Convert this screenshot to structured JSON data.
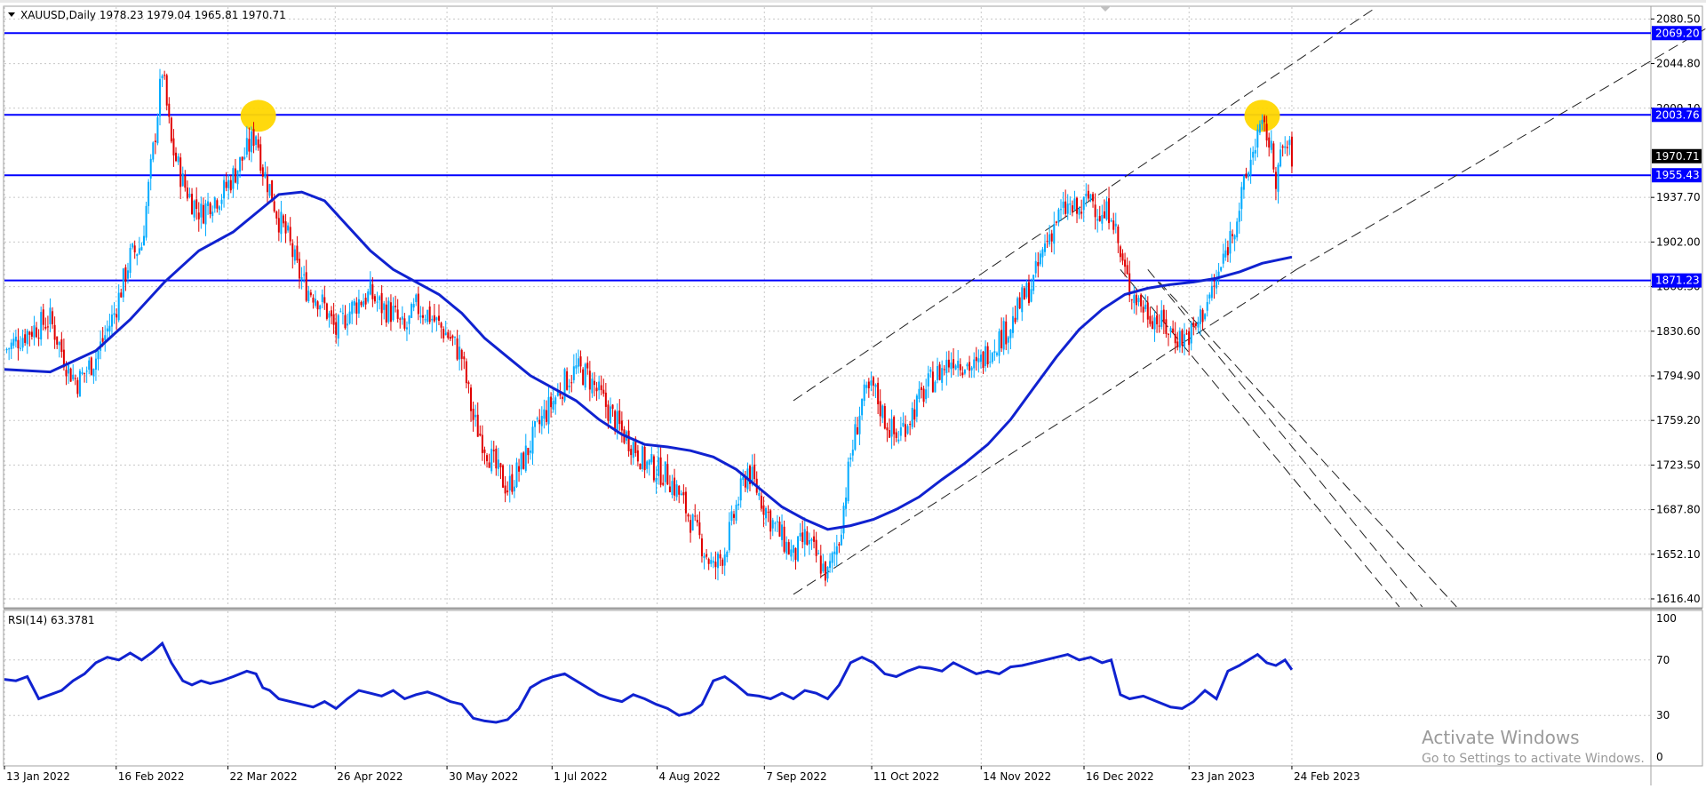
{
  "header": {
    "symbol_line": "XAUUSD,Daily  1978.23 1979.04 1965.81 1970.71",
    "rsi_label": "RSI(14) 63.3781"
  },
  "watermark": {
    "line1": "Activate Windows",
    "line2": "Go to Settings to activate Windows."
  },
  "colors": {
    "bull": "#00aaff",
    "bear": "#e00000",
    "ma": "#1022d0",
    "level": "#0000ff",
    "grid": "#c8c8c8",
    "marker": "#ffd700",
    "rsi": "#1022d0"
  },
  "chart_data": [
    {
      "type": "candlestick",
      "title": "XAUUSD,Daily",
      "ohlc_header": {
        "open": 1978.23,
        "high": 1979.04,
        "low": 1965.81,
        "close": 1970.71
      },
      "price_axis_ticks": [
        "2080.50",
        "2044.80",
        "2009.10",
        "1937.70",
        "1902.00",
        "1866.30",
        "1830.60",
        "1794.90",
        "1759.20",
        "1723.50",
        "1687.80",
        "1652.10",
        "1616.40"
      ],
      "date_axis_ticks": [
        "13 Jan 2022",
        "16 Feb 2022",
        "22 Mar 2022",
        "26 Apr 2022",
        "30 May 2022",
        "1 Jul 2022",
        "4 Aug 2022",
        "7 Sep 2022",
        "11 Oct 2022",
        "14 Nov 2022",
        "16 Dec 2022",
        "23 Jan 2023",
        "24 Feb 2023"
      ],
      "ylim": [
        1610,
        2090
      ],
      "horizontal_levels": [
        {
          "label": "2069.20",
          "value": 2069.2
        },
        {
          "label": "2003.76",
          "value": 2003.76
        },
        {
          "label": "1955.43",
          "value": 1955.43
        },
        {
          "label": "1871.23",
          "value": 1871.23
        }
      ],
      "current_price": {
        "label": "1970.71",
        "value": 1970.71
      },
      "close_path": [
        [
          0,
          1815
        ],
        [
          10,
          1830
        ],
        [
          20,
          1840
        ],
        [
          28,
          1800
        ],
        [
          32,
          1790
        ],
        [
          40,
          1810
        ],
        [
          48,
          1845
        ],
        [
          55,
          1890
        ],
        [
          60,
          1900
        ],
        [
          66,
          1990
        ],
        [
          69,
          2040
        ],
        [
          73,
          1980
        ],
        [
          78,
          1950
        ],
        [
          82,
          1935
        ],
        [
          86,
          1925
        ],
        [
          90,
          1935
        ],
        [
          95,
          1940
        ],
        [
          100,
          1955
        ],
        [
          106,
          1975
        ],
        [
          110,
          1990
        ],
        [
          113,
          1960
        ],
        [
          116,
          1945
        ],
        [
          120,
          1920
        ],
        [
          124,
          1905
        ],
        [
          128,
          1880
        ],
        [
          132,
          1865
        ],
        [
          136,
          1860
        ],
        [
          140,
          1850
        ],
        [
          145,
          1830
        ],
        [
          150,
          1845
        ],
        [
          155,
          1855
        ],
        [
          160,
          1860
        ],
        [
          165,
          1850
        ],
        [
          170,
          1845
        ],
        [
          175,
          1830
        ],
        [
          180,
          1850
        ],
        [
          185,
          1845
        ],
        [
          190,
          1835
        ],
        [
          195,
          1825
        ],
        [
          200,
          1810
        ],
        [
          205,
          1760
        ],
        [
          210,
          1740
        ],
        [
          215,
          1720
        ],
        [
          220,
          1705
        ],
        [
          225,
          1720
        ],
        [
          230,
          1740
        ],
        [
          235,
          1760
        ],
        [
          240,
          1775
        ],
        [
          245,
          1790
        ],
        [
          250,
          1800
        ],
        [
          255,
          1795
        ],
        [
          260,
          1780
        ],
        [
          265,
          1765
        ],
        [
          270,
          1750
        ],
        [
          275,
          1740
        ],
        [
          280,
          1725
        ],
        [
          285,
          1720
        ],
        [
          290,
          1715
        ],
        [
          295,
          1700
        ],
        [
          300,
          1680
        ],
        [
          305,
          1660
        ],
        [
          310,
          1640
        ],
        [
          315,
          1655
        ],
        [
          320,
          1690
        ],
        [
          325,
          1720
        ],
        [
          330,
          1700
        ],
        [
          335,
          1680
        ],
        [
          340,
          1665
        ],
        [
          345,
          1650
        ],
        [
          350,
          1665
        ],
        [
          355,
          1650
        ],
        [
          360,
          1635
        ],
        [
          365,
          1665
        ],
        [
          370,
          1730
        ],
        [
          375,
          1775
        ],
        [
          380,
          1785
        ],
        [
          385,
          1760
        ],
        [
          390,
          1745
        ],
        [
          395,
          1760
        ],
        [
          400,
          1775
        ],
        [
          405,
          1790
        ],
        [
          410,
          1800
        ],
        [
          415,
          1810
        ],
        [
          420,
          1805
        ],
        [
          425,
          1800
        ],
        [
          430,
          1815
        ],
        [
          435,
          1825
        ],
        [
          440,
          1835
        ],
        [
          445,
          1855
        ],
        [
          450,
          1870
        ],
        [
          455,
          1900
        ],
        [
          460,
          1920
        ],
        [
          465,
          1930
        ],
        [
          470,
          1925
        ],
        [
          475,
          1940
        ],
        [
          480,
          1920
        ],
        [
          484,
          1930
        ],
        [
          488,
          1890
        ],
        [
          492,
          1865
        ],
        [
          498,
          1850
        ],
        [
          504,
          1840
        ],
        [
          510,
          1830
        ],
        [
          515,
          1825
        ],
        [
          520,
          1830
        ],
        [
          525,
          1850
        ],
        [
          530,
          1870
        ],
        [
          535,
          1900
        ],
        [
          540,
          1930
        ],
        [
          544,
          1960
        ],
        [
          548,
          1990
        ],
        [
          552,
          1990
        ],
        [
          556,
          1955
        ],
        [
          560,
          1980
        ],
        [
          563,
          1971
        ]
      ],
      "ma_path": [
        [
          0,
          1800
        ],
        [
          20,
          1798
        ],
        [
          40,
          1815
        ],
        [
          55,
          1840
        ],
        [
          70,
          1870
        ],
        [
          85,
          1895
        ],
        [
          100,
          1910
        ],
        [
          110,
          1925
        ],
        [
          120,
          1940
        ],
        [
          130,
          1942
        ],
        [
          140,
          1935
        ],
        [
          150,
          1915
        ],
        [
          160,
          1895
        ],
        [
          170,
          1880
        ],
        [
          180,
          1870
        ],
        [
          190,
          1860
        ],
        [
          200,
          1845
        ],
        [
          210,
          1825
        ],
        [
          220,
          1810
        ],
        [
          230,
          1795
        ],
        [
          240,
          1785
        ],
        [
          250,
          1775
        ],
        [
          260,
          1760
        ],
        [
          270,
          1748
        ],
        [
          280,
          1740
        ],
        [
          290,
          1738
        ],
        [
          300,
          1735
        ],
        [
          310,
          1730
        ],
        [
          320,
          1720
        ],
        [
          330,
          1705
        ],
        [
          340,
          1690
        ],
        [
          350,
          1680
        ],
        [
          360,
          1672
        ],
        [
          370,
          1675
        ],
        [
          380,
          1680
        ],
        [
          390,
          1688
        ],
        [
          400,
          1698
        ],
        [
          410,
          1712
        ],
        [
          420,
          1725
        ],
        [
          430,
          1740
        ],
        [
          440,
          1760
        ],
        [
          450,
          1785
        ],
        [
          460,
          1810
        ],
        [
          470,
          1832
        ],
        [
          480,
          1848
        ],
        [
          490,
          1860
        ],
        [
          500,
          1865
        ],
        [
          510,
          1868
        ],
        [
          520,
          1870
        ],
        [
          530,
          1873
        ],
        [
          540,
          1878
        ],
        [
          550,
          1885
        ],
        [
          563,
          1890
        ]
      ],
      "trend_lines": [
        {
          "from": [
            345,
            1620
          ],
          "to": [
            565,
            1880
          ],
          "style": "dashed"
        },
        {
          "from": [
            345,
            1775
          ],
          "to": [
            600,
            2090
          ],
          "style": "dashed"
        },
        {
          "from": [
            565,
            1880
          ],
          "to": [
            760,
            2090
          ],
          "style": "dashed"
        },
        {
          "from": [
            500,
            1880
          ],
          "to": [
            620,
            1610
          ],
          "style": "dashed"
        },
        {
          "from": [
            505,
            1870
          ],
          "to": [
            635,
            1610
          ],
          "style": "dashed"
        },
        {
          "from": [
            488,
            1880
          ],
          "to": [
            610,
            1610
          ],
          "style": "dashed"
        }
      ],
      "highlight_markers": [
        {
          "x": 111,
          "value": 2003
        },
        {
          "x": 550,
          "value": 2003
        }
      ]
    },
    {
      "type": "line",
      "title": "RSI(14) 63.3781",
      "yticks": [
        "100",
        "70",
        "30",
        "0"
      ],
      "ylim": [
        0,
        100
      ],
      "rsi_path": [
        [
          0,
          56
        ],
        [
          5,
          55
        ],
        [
          10,
          58
        ],
        [
          15,
          42
        ],
        [
          20,
          45
        ],
        [
          25,
          48
        ],
        [
          30,
          55
        ],
        [
          35,
          60
        ],
        [
          40,
          68
        ],
        [
          45,
          72
        ],
        [
          50,
          70
        ],
        [
          55,
          75
        ],
        [
          60,
          70
        ],
        [
          65,
          76
        ],
        [
          69,
          82
        ],
        [
          73,
          68
        ],
        [
          78,
          55
        ],
        [
          82,
          52
        ],
        [
          86,
          55
        ],
        [
          90,
          53
        ],
        [
          95,
          55
        ],
        [
          100,
          58
        ],
        [
          106,
          62
        ],
        [
          110,
          60
        ],
        [
          113,
          50
        ],
        [
          116,
          48
        ],
        [
          120,
          42
        ],
        [
          125,
          40
        ],
        [
          130,
          38
        ],
        [
          135,
          36
        ],
        [
          140,
          40
        ],
        [
          145,
          35
        ],
        [
          150,
          42
        ],
        [
          155,
          48
        ],
        [
          160,
          46
        ],
        [
          165,
          44
        ],
        [
          170,
          48
        ],
        [
          175,
          42
        ],
        [
          180,
          45
        ],
        [
          185,
          47
        ],
        [
          190,
          44
        ],
        [
          195,
          40
        ],
        [
          200,
          38
        ],
        [
          205,
          28
        ],
        [
          210,
          26
        ],
        [
          215,
          25
        ],
        [
          220,
          27
        ],
        [
          225,
          35
        ],
        [
          230,
          50
        ],
        [
          235,
          55
        ],
        [
          240,
          58
        ],
        [
          245,
          60
        ],
        [
          250,
          55
        ],
        [
          255,
          50
        ],
        [
          260,
          45
        ],
        [
          265,
          42
        ],
        [
          270,
          40
        ],
        [
          275,
          45
        ],
        [
          280,
          42
        ],
        [
          285,
          38
        ],
        [
          290,
          35
        ],
        [
          295,
          30
        ],
        [
          300,
          32
        ],
        [
          305,
          38
        ],
        [
          310,
          55
        ],
        [
          315,
          58
        ],
        [
          320,
          52
        ],
        [
          325,
          45
        ],
        [
          330,
          44
        ],
        [
          335,
          42
        ],
        [
          340,
          46
        ],
        [
          345,
          42
        ],
        [
          350,
          48
        ],
        [
          355,
          46
        ],
        [
          360,
          42
        ],
        [
          365,
          52
        ],
        [
          370,
          68
        ],
        [
          375,
          72
        ],
        [
          380,
          68
        ],
        [
          385,
          60
        ],
        [
          390,
          58
        ],
        [
          395,
          62
        ],
        [
          400,
          65
        ],
        [
          405,
          64
        ],
        [
          410,
          62
        ],
        [
          415,
          68
        ],
        [
          420,
          64
        ],
        [
          425,
          60
        ],
        [
          430,
          62
        ],
        [
          435,
          60
        ],
        [
          440,
          65
        ],
        [
          445,
          66
        ],
        [
          450,
          68
        ],
        [
          455,
          70
        ],
        [
          460,
          72
        ],
        [
          465,
          74
        ],
        [
          470,
          70
        ],
        [
          475,
          72
        ],
        [
          480,
          68
        ],
        [
          484,
          70
        ],
        [
          488,
          45
        ],
        [
          492,
          42
        ],
        [
          498,
          44
        ],
        [
          504,
          40
        ],
        [
          510,
          36
        ],
        [
          515,
          35
        ],
        [
          520,
          40
        ],
        [
          525,
          48
        ],
        [
          530,
          42
        ],
        [
          535,
          62
        ],
        [
          540,
          66
        ],
        [
          544,
          70
        ],
        [
          548,
          74
        ],
        [
          552,
          68
        ],
        [
          556,
          66
        ],
        [
          560,
          70
        ],
        [
          563,
          63
        ]
      ]
    }
  ]
}
